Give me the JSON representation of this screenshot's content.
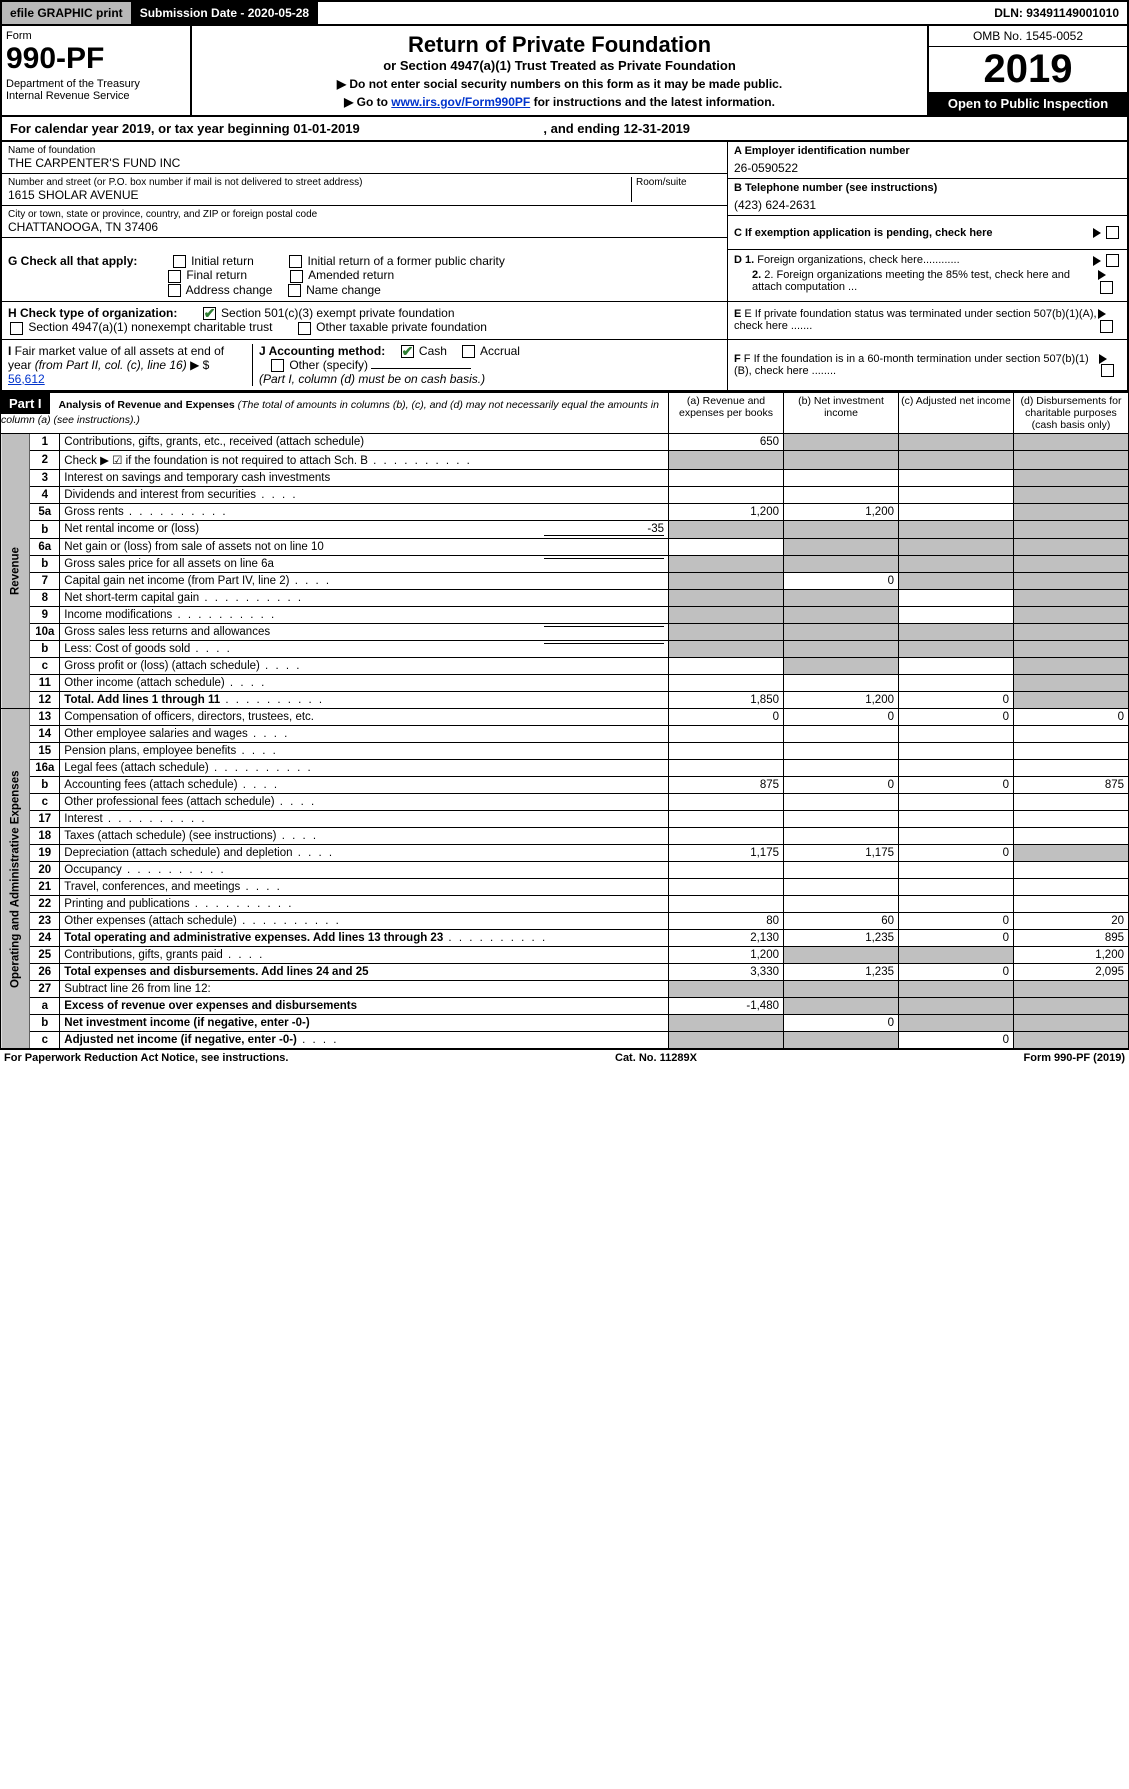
{
  "topbar": {
    "efile": "efile GRAPHIC print",
    "submission": "Submission Date - 2020-05-28",
    "dln": "DLN: 93491149001010"
  },
  "header": {
    "form_label": "Form",
    "form_number": "990-PF",
    "dept": "Department of the Treasury\nInternal Revenue Service",
    "title": "Return of Private Foundation",
    "subtitle": "or Section 4947(a)(1) Trust Treated as Private Foundation",
    "instr1": "▶ Do not enter social security numbers on this form as it may be made public.",
    "instr2_pre": "▶ Go to ",
    "instr2_link": "www.irs.gov/Form990PF",
    "instr2_post": " for instructions and the latest information.",
    "omb": "OMB No. 1545-0052",
    "year": "2019",
    "open": "Open to Public Inspection"
  },
  "cal": {
    "text_pre": "For calendar year 2019, or tax year beginning ",
    "begin": "01-01-2019",
    "text_mid": " , and ending ",
    "end": "12-31-2019"
  },
  "info": {
    "name_label": "Name of foundation",
    "name": "THE CARPENTER'S FUND INC",
    "addr_label": "Number and street (or P.O. box number if mail is not delivered to street address)",
    "room_label": "Room/suite",
    "addr": "1615 SHOLAR AVENUE",
    "city_label": "City or town, state or province, country, and ZIP or foreign postal code",
    "city": "CHATTANOOGA, TN  37406",
    "ein_label": "A Employer identification number",
    "ein": "26-0590522",
    "phone_label": "B Telephone number (see instructions)",
    "phone": "(423) 624-2631",
    "c_label": "C If exemption application is pending, check here"
  },
  "checks": {
    "g_label": "G Check all that apply:",
    "g_opts": [
      "Initial return",
      "Initial return of a former public charity",
      "Final return",
      "Amended return",
      "Address change",
      "Name change"
    ],
    "h_label": "H Check type of organization:",
    "h_opts": [
      "Section 501(c)(3) exempt private foundation",
      "Section 4947(a)(1) nonexempt charitable trust",
      "Other taxable private foundation"
    ],
    "i_label": "I Fair market value of all assets at end of year (from Part II, col. (c), line 16) ▶ $",
    "i_value": "56,612",
    "j_label": "J Accounting method:",
    "j_opts": [
      "Cash",
      "Accrual"
    ],
    "j_other": "Other (specify)",
    "j_note": "(Part I, column (d) must be on cash basis.)",
    "d_label": "D 1. Foreign organizations, check here",
    "d2_label": "2. Foreign organizations meeting the 85% test, check here and attach computation ...",
    "e_label": "E If private foundation status was terminated under section 507(b)(1)(A), check here .......",
    "f_label": "F If the foundation is in a 60-month termination under section 507(b)(1)(B), check here ........"
  },
  "part1": {
    "label": "Part I",
    "title": "Analysis of Revenue and Expenses",
    "title_note": "(The total of amounts in columns (b), (c), and (d) may not necessarily equal the amounts in column (a) (see instructions).)",
    "col_a": "(a) Revenue and expenses per books",
    "col_b": "(b) Net investment income",
    "col_c": "(c) Adjusted net income",
    "col_d": "(d) Disbursements for charitable purposes (cash basis only)",
    "revenue_label": "Revenue",
    "expenses_label": "Operating and Administrative Expenses"
  },
  "rows": [
    {
      "n": "1",
      "desc": "Contributions, gifts, grants, etc., received (attach schedule)",
      "a": "650",
      "b": "",
      "c": "",
      "d": "",
      "sh_b": true,
      "sh_c": true,
      "sh_d": true
    },
    {
      "n": "2",
      "desc": "Check ▶ ☑ if the foundation is not required to attach Sch. B",
      "a": "",
      "b": "",
      "c": "",
      "d": "",
      "sh_a": true,
      "sh_b": true,
      "sh_c": true,
      "sh_d": true,
      "dots": true
    },
    {
      "n": "3",
      "desc": "Interest on savings and temporary cash investments",
      "a": "",
      "b": "",
      "c": "",
      "d": "",
      "sh_d": true
    },
    {
      "n": "4",
      "desc": "Dividends and interest from securities",
      "a": "",
      "b": "",
      "c": "",
      "d": "",
      "sh_d": true,
      "dots": "short"
    },
    {
      "n": "5a",
      "desc": "Gross rents",
      "a": "1,200",
      "b": "1,200",
      "c": "",
      "d": "",
      "sh_d": true,
      "dots": true
    },
    {
      "n": "b",
      "desc": "Net rental income or (loss)",
      "inline": "-35",
      "sh_a": true,
      "sh_b": true,
      "sh_c": true,
      "sh_d": true
    },
    {
      "n": "6a",
      "desc": "Net gain or (loss) from sale of assets not on line 10",
      "a": "",
      "b": "",
      "c": "",
      "d": "",
      "sh_b": true,
      "sh_c": true,
      "sh_d": true
    },
    {
      "n": "b",
      "desc": "Gross sales price for all assets on line 6a",
      "inline": "",
      "sh_a": true,
      "sh_b": true,
      "sh_c": true,
      "sh_d": true
    },
    {
      "n": "7",
      "desc": "Capital gain net income (from Part IV, line 2)",
      "a": "",
      "b": "0",
      "c": "",
      "d": "",
      "sh_a": true,
      "sh_c": true,
      "sh_d": true,
      "dots": "short"
    },
    {
      "n": "8",
      "desc": "Net short-term capital gain",
      "a": "",
      "b": "",
      "c": "",
      "d": "",
      "sh_a": true,
      "sh_b": true,
      "sh_d": true,
      "dots": true
    },
    {
      "n": "9",
      "desc": "Income modifications",
      "a": "",
      "b": "",
      "c": "",
      "d": "",
      "sh_a": true,
      "sh_b": true,
      "sh_d": true,
      "dots": true
    },
    {
      "n": "10a",
      "desc": "Gross sales less returns and allowances",
      "inline": "",
      "sh_a": true,
      "sh_b": true,
      "sh_c": true,
      "sh_d": true
    },
    {
      "n": "b",
      "desc": "Less: Cost of goods sold",
      "inline": "",
      "sh_a": true,
      "sh_b": true,
      "sh_c": true,
      "sh_d": true,
      "dots": "short"
    },
    {
      "n": "c",
      "desc": "Gross profit or (loss) (attach schedule)",
      "a": "",
      "b": "",
      "c": "",
      "d": "",
      "sh_b": true,
      "sh_d": true,
      "dots": "short"
    },
    {
      "n": "11",
      "desc": "Other income (attach schedule)",
      "a": "",
      "b": "",
      "c": "",
      "d": "",
      "sh_d": true,
      "dots": "short"
    },
    {
      "n": "12",
      "desc": "Total. Add lines 1 through 11",
      "bold": true,
      "a": "1,850",
      "b": "1,200",
      "c": "0",
      "d": "",
      "sh_d": true,
      "dots": true
    }
  ],
  "exp_rows": [
    {
      "n": "13",
      "desc": "Compensation of officers, directors, trustees, etc.",
      "a": "0",
      "b": "0",
      "c": "0",
      "d": "0"
    },
    {
      "n": "14",
      "desc": "Other employee salaries and wages",
      "dots": "short"
    },
    {
      "n": "15",
      "desc": "Pension plans, employee benefits",
      "dots": "short"
    },
    {
      "n": "16a",
      "desc": "Legal fees (attach schedule)",
      "dots": true
    },
    {
      "n": "b",
      "desc": "Accounting fees (attach schedule)",
      "a": "875",
      "b": "0",
      "c": "0",
      "d": "875",
      "dots": "short"
    },
    {
      "n": "c",
      "desc": "Other professional fees (attach schedule)",
      "dots": "short"
    },
    {
      "n": "17",
      "desc": "Interest",
      "dots": true
    },
    {
      "n": "18",
      "desc": "Taxes (attach schedule) (see instructions)",
      "dots": "short"
    },
    {
      "n": "19",
      "desc": "Depreciation (attach schedule) and depletion",
      "a": "1,175",
      "b": "1,175",
      "c": "0",
      "sh_d": true,
      "dots": "short"
    },
    {
      "n": "20",
      "desc": "Occupancy",
      "dots": true
    },
    {
      "n": "21",
      "desc": "Travel, conferences, and meetings",
      "dots": "short"
    },
    {
      "n": "22",
      "desc": "Printing and publications",
      "dots": true
    },
    {
      "n": "23",
      "desc": "Other expenses (attach schedule)",
      "a": "80",
      "b": "60",
      "c": "0",
      "d": "20",
      "dots": true
    },
    {
      "n": "24",
      "desc": "Total operating and administrative expenses. Add lines 13 through 23",
      "bold": true,
      "a": "2,130",
      "b": "1,235",
      "c": "0",
      "d": "895",
      "dots": true
    },
    {
      "n": "25",
      "desc": "Contributions, gifts, grants paid",
      "a": "1,200",
      "d": "1,200",
      "sh_b": true,
      "sh_c": true,
      "dots": "short"
    },
    {
      "n": "26",
      "desc": "Total expenses and disbursements. Add lines 24 and 25",
      "bold": true,
      "a": "3,330",
      "b": "1,235",
      "c": "0",
      "d": "2,095"
    },
    {
      "n": "27",
      "desc": "Subtract line 26 from line 12:",
      "sh_a": true,
      "sh_b": true,
      "sh_c": true,
      "sh_d": true
    },
    {
      "n": "a",
      "desc": "Excess of revenue over expenses and disbursements",
      "bold": true,
      "a": "-1,480",
      "sh_b": true,
      "sh_c": true,
      "sh_d": true
    },
    {
      "n": "b",
      "desc": "Net investment income (if negative, enter -0-)",
      "bold": true,
      "b": "0",
      "sh_a": true,
      "sh_c": true,
      "sh_d": true
    },
    {
      "n": "c",
      "desc": "Adjusted net income (if negative, enter -0-)",
      "bold": true,
      "c": "0",
      "sh_a": true,
      "sh_b": true,
      "sh_d": true,
      "dots": "short"
    }
  ],
  "footer": {
    "left": "For Paperwork Reduction Act Notice, see instructions.",
    "mid": "Cat. No. 11289X",
    "right": "Form 990-PF (2019)"
  }
}
